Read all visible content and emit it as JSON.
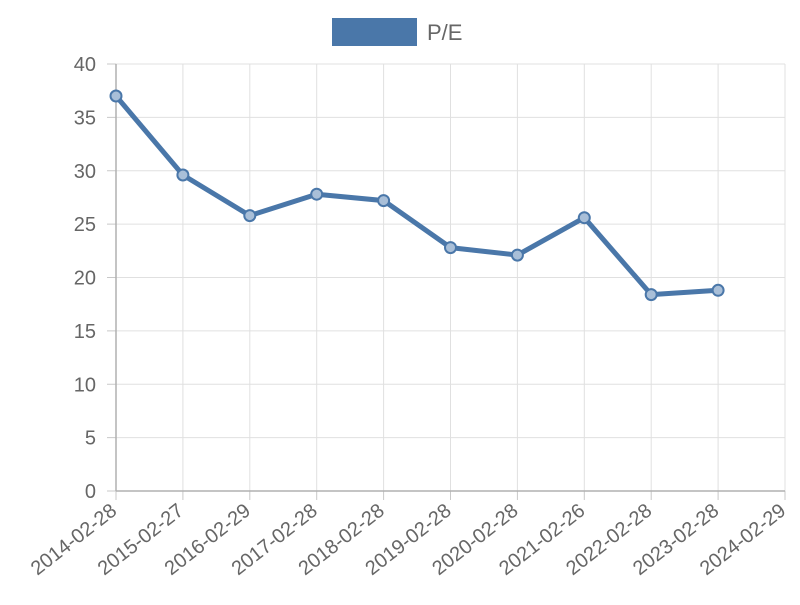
{
  "chart_data": {
    "type": "line",
    "legend": {
      "label": "P/E",
      "position": "top-center"
    },
    "x": [
      "2014-02-28",
      "2015-02-27",
      "2016-02-29",
      "2017-02-28",
      "2018-02-28",
      "2019-02-28",
      "2020-02-28",
      "2021-02-26",
      "2022-02-28",
      "2023-02-28",
      "2024-02-29"
    ],
    "series": [
      {
        "name": "P/E",
        "color": "#4a77a9",
        "values": [
          37.0,
          29.6,
          25.8,
          27.8,
          27.2,
          22.8,
          22.1,
          25.6,
          18.4,
          18.8,
          null
        ]
      }
    ],
    "ylim": [
      0,
      40
    ],
    "yticks": [
      0,
      5,
      10,
      15,
      20,
      25,
      30,
      35,
      40
    ],
    "grid": true
  }
}
